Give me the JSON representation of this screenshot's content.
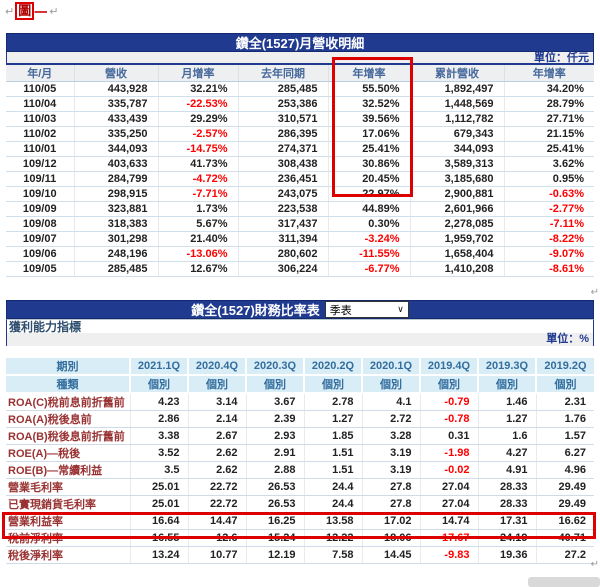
{
  "page": {
    "figure_label": "圖",
    "figure_label_suffix": "一",
    "return_mark": "↵"
  },
  "colors": {
    "title_bar": "#203A8F",
    "header_text": "#46689B",
    "quarter_header_bg": "#D9EDF7",
    "quarter_header_text": "#336E9E",
    "row_label_maroon": "#993333",
    "negative_value": "#FF0000",
    "annotation_red": "#DD0000"
  },
  "monthly_table": {
    "title": "鑽全(1527)月營收明細",
    "unit": "單位：仟元",
    "columns": [
      "年/月",
      "營收",
      "月增率",
      "去年同期",
      "年增率",
      "累計營收",
      "年增率"
    ],
    "rows": [
      [
        "110/05",
        "443,928",
        "32.21%",
        "285,485",
        "55.50%",
        "1,892,497",
        "34.20%"
      ],
      [
        "110/04",
        "335,787",
        "-22.53%",
        "253,386",
        "32.52%",
        "1,448,569",
        "28.79%"
      ],
      [
        "110/03",
        "433,439",
        "29.29%",
        "310,571",
        "39.56%",
        "1,112,782",
        "27.71%"
      ],
      [
        "110/02",
        "335,250",
        "-2.57%",
        "286,395",
        "17.06%",
        "679,343",
        "21.15%"
      ],
      [
        "110/01",
        "344,093",
        "-14.75%",
        "274,371",
        "25.41%",
        "344,093",
        "25.41%"
      ],
      [
        "109/12",
        "403,633",
        "41.73%",
        "308,438",
        "30.86%",
        "3,589,313",
        "3.62%"
      ],
      [
        "109/11",
        "284,799",
        "-4.72%",
        "236,451",
        "20.45%",
        "3,185,680",
        "0.95%"
      ],
      [
        "109/10",
        "298,915",
        "-7.71%",
        "243,075",
        "22.97%",
        "2,900,881",
        "-0.63%"
      ],
      [
        "109/09",
        "323,881",
        "1.73%",
        "223,538",
        "44.89%",
        "2,601,966",
        "-2.77%"
      ],
      [
        "109/08",
        "318,383",
        "5.67%",
        "317,437",
        "0.30%",
        "2,278,085",
        "-7.11%"
      ],
      [
        "109/07",
        "301,298",
        "21.40%",
        "311,394",
        "-3.24%",
        "1,959,702",
        "-8.22%"
      ],
      [
        "109/06",
        "248,196",
        "-13.06%",
        "280,602",
        "-11.55%",
        "1,658,404",
        "-9.07%"
      ],
      [
        "109/05",
        "285,485",
        "12.67%",
        "306,224",
        "-6.77%",
        "1,410,208",
        "-8.61%"
      ]
    ]
  },
  "ratio_table": {
    "title": "鑽全(1527)財務比率表",
    "period_select": "季表",
    "section": "獲利能力指標",
    "unit": "單位：%",
    "period_header": "期別",
    "periods": [
      "2021.1Q",
      "2020.4Q",
      "2020.3Q",
      "2020.2Q",
      "2020.1Q",
      "2019.4Q",
      "2019.3Q",
      "2019.2Q"
    ],
    "type_header": "種類",
    "types": [
      "個別",
      "個別",
      "個別",
      "個別",
      "個別",
      "個別",
      "個別",
      "個別"
    ],
    "rows": [
      {
        "label": "ROA(C)稅前息前折舊前",
        "values": [
          "4.23",
          "3.14",
          "3.67",
          "2.78",
          "4.1",
          "-0.79",
          "1.46",
          "2.31"
        ]
      },
      {
        "label": "ROA(A)稅後息前",
        "values": [
          "2.86",
          "2.14",
          "2.39",
          "1.27",
          "2.72",
          "-0.78",
          "1.27",
          "1.76"
        ]
      },
      {
        "label": "ROA(B)稅後息前折舊前",
        "values": [
          "3.38",
          "2.67",
          "2.93",
          "1.85",
          "3.28",
          "0.31",
          "1.6",
          "1.57"
        ]
      },
      {
        "label": "ROE(A)—稅後",
        "values": [
          "3.52",
          "2.62",
          "2.91",
          "1.51",
          "3.19",
          "-1.98",
          "4.27",
          "6.27"
        ]
      },
      {
        "label": "ROE(B)—常續利益",
        "values": [
          "3.5",
          "2.62",
          "2.88",
          "1.51",
          "3.19",
          "-0.02",
          "4.91",
          "4.96"
        ]
      },
      {
        "label": "營業毛利率",
        "values": [
          "25.01",
          "22.72",
          "26.53",
          "24.4",
          "27.8",
          "27.04",
          "28.33",
          "29.49"
        ]
      },
      {
        "label": "已實現銷貨毛利率",
        "values": [
          "25.01",
          "22.72",
          "26.53",
          "24.4",
          "27.8",
          "27.04",
          "28.33",
          "29.49"
        ]
      },
      {
        "label": "營業利益率",
        "values": [
          "16.64",
          "14.47",
          "16.25",
          "13.58",
          "17.02",
          "14.74",
          "17.31",
          "16.62"
        ]
      },
      {
        "label": "稅前淨利率",
        "values": [
          "16.55",
          "12.6",
          "15.24",
          "12.22",
          "18.06",
          "-17.67",
          "24.19",
          "40.71"
        ]
      },
      {
        "label": "稅後淨利率",
        "values": [
          "13.24",
          "10.77",
          "12.19",
          "7.58",
          "14.45",
          "-9.83",
          "19.36",
          "27.2"
        ]
      }
    ]
  }
}
